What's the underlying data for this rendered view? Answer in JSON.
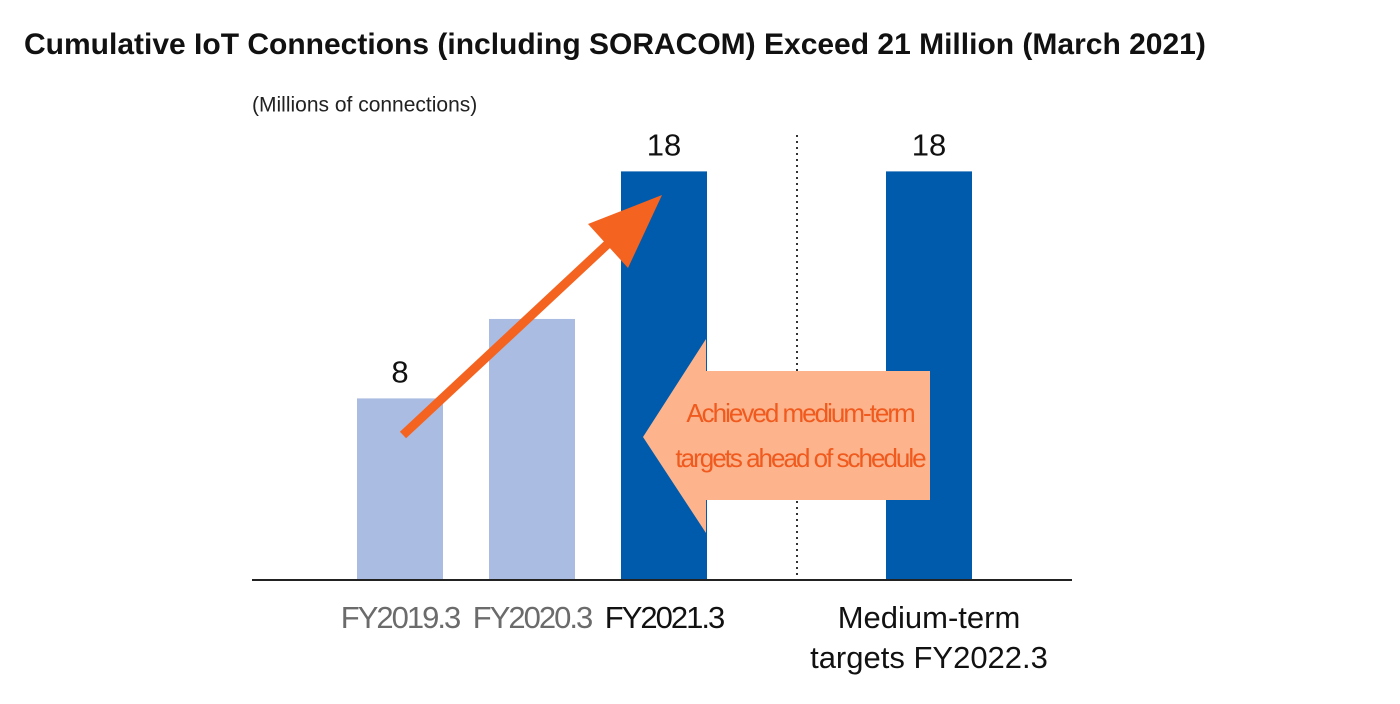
{
  "chart_data": {
    "type": "bar",
    "title": "Cumulative IoT Connections (including SORACOM) Exceed 21 Million (March 2021)",
    "y_label": "(Millions of connections)",
    "categories": [
      "FY2019.3",
      "FY2020.3",
      "FY2021.3",
      "Medium-term targets FY2022.3"
    ],
    "values": [
      8,
      11.5,
      18,
      18
    ],
    "value_labels": [
      "8",
      null,
      "18",
      "18"
    ],
    "colors": [
      "#aabce2",
      "#aabce2",
      "#005bac",
      "#005bac"
    ],
    "category_colors": [
      "#6b6b6b",
      "#6b6b6b",
      "#111111",
      "#111111"
    ],
    "ylim": [
      0,
      20
    ],
    "annotation": [
      "Achieved medium-term",
      "targets ahead of schedule"
    ]
  }
}
